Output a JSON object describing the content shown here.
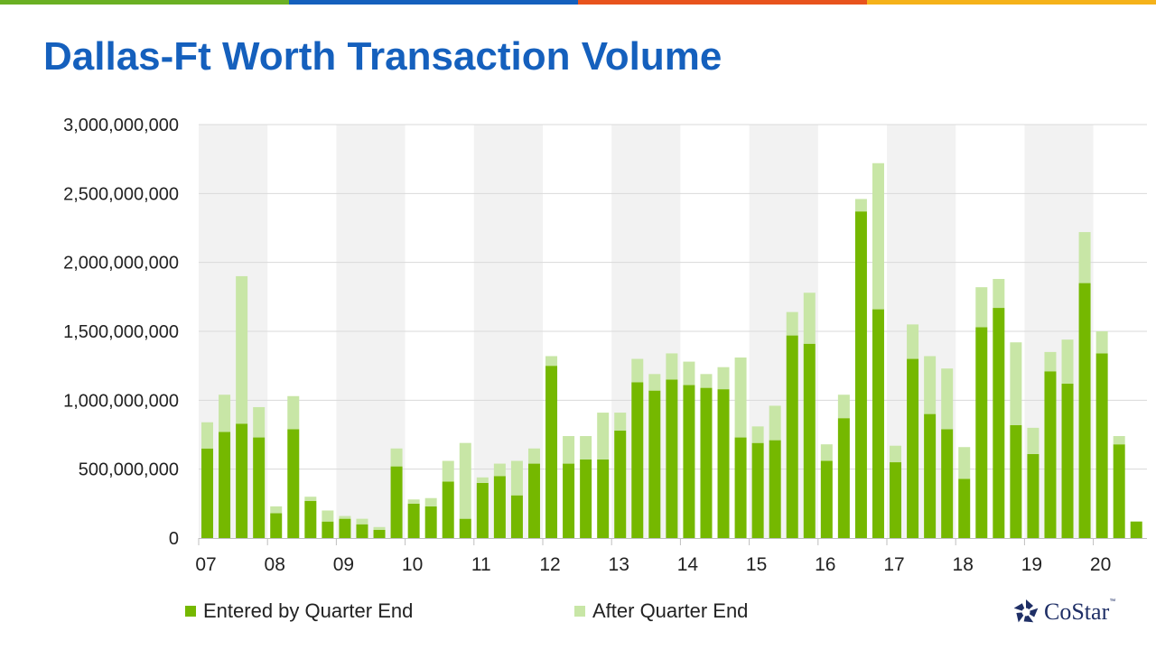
{
  "title": "Dallas-Ft Worth Transaction Volume",
  "brand": {
    "name": "CoStar",
    "tm": "™",
    "color": "#1f2f66",
    "top_bar_colors": [
      "#6ab023",
      "#1560bd",
      "#e8531d",
      "#f5b21a"
    ]
  },
  "chart_data": {
    "type": "bar",
    "stacked": true,
    "grid": true,
    "legend_position": "bottom",
    "ylim": [
      0,
      3000000000
    ],
    "y_ticks": [
      "0",
      "500,000,000",
      "1,000,000,000",
      "1,500,000,000",
      "2,000,000,000",
      "2,500,000,000",
      "3,000,000,000"
    ],
    "year_labels": [
      "07",
      "08",
      "09",
      "10",
      "11",
      "12",
      "13",
      "14",
      "15",
      "16",
      "17",
      "18",
      "19",
      "20"
    ],
    "colors": {
      "entered": "#75b800",
      "after": "#c8e6a6",
      "band": "#f2f2f2"
    },
    "series": [
      {
        "name": "Entered by Quarter End",
        "values": [
          650000000,
          770000000,
          830000000,
          730000000,
          180000000,
          790000000,
          270000000,
          120000000,
          140000000,
          100000000,
          60000000,
          520000000,
          250000000,
          230000000,
          410000000,
          140000000,
          400000000,
          450000000,
          310000000,
          540000000,
          1250000000,
          540000000,
          570000000,
          570000000,
          780000000,
          1130000000,
          1070000000,
          1150000000,
          1110000000,
          1090000000,
          1080000000,
          730000000,
          690000000,
          710000000,
          1470000000,
          1410000000,
          560000000,
          870000000,
          2370000000,
          1660000000,
          550000000,
          1300000000,
          900000000,
          790000000,
          430000000,
          1530000000,
          1670000000,
          820000000,
          610000000,
          1210000000,
          1120000000,
          1850000000,
          1340000000,
          680000000,
          120000000
        ]
      },
      {
        "name": "After Quarter End",
        "values": [
          190000000,
          270000000,
          1070000000,
          220000000,
          50000000,
          240000000,
          30000000,
          80000000,
          20000000,
          40000000,
          20000000,
          130000000,
          30000000,
          60000000,
          150000000,
          550000000,
          40000000,
          90000000,
          250000000,
          110000000,
          70000000,
          200000000,
          170000000,
          340000000,
          130000000,
          170000000,
          120000000,
          190000000,
          170000000,
          100000000,
          160000000,
          580000000,
          120000000,
          250000000,
          170000000,
          370000000,
          120000000,
          170000000,
          90000000,
          1060000000,
          120000000,
          250000000,
          420000000,
          440000000,
          230000000,
          290000000,
          210000000,
          600000000,
          190000000,
          140000000,
          320000000,
          370000000,
          160000000,
          60000000,
          0
        ]
      }
    ]
  }
}
